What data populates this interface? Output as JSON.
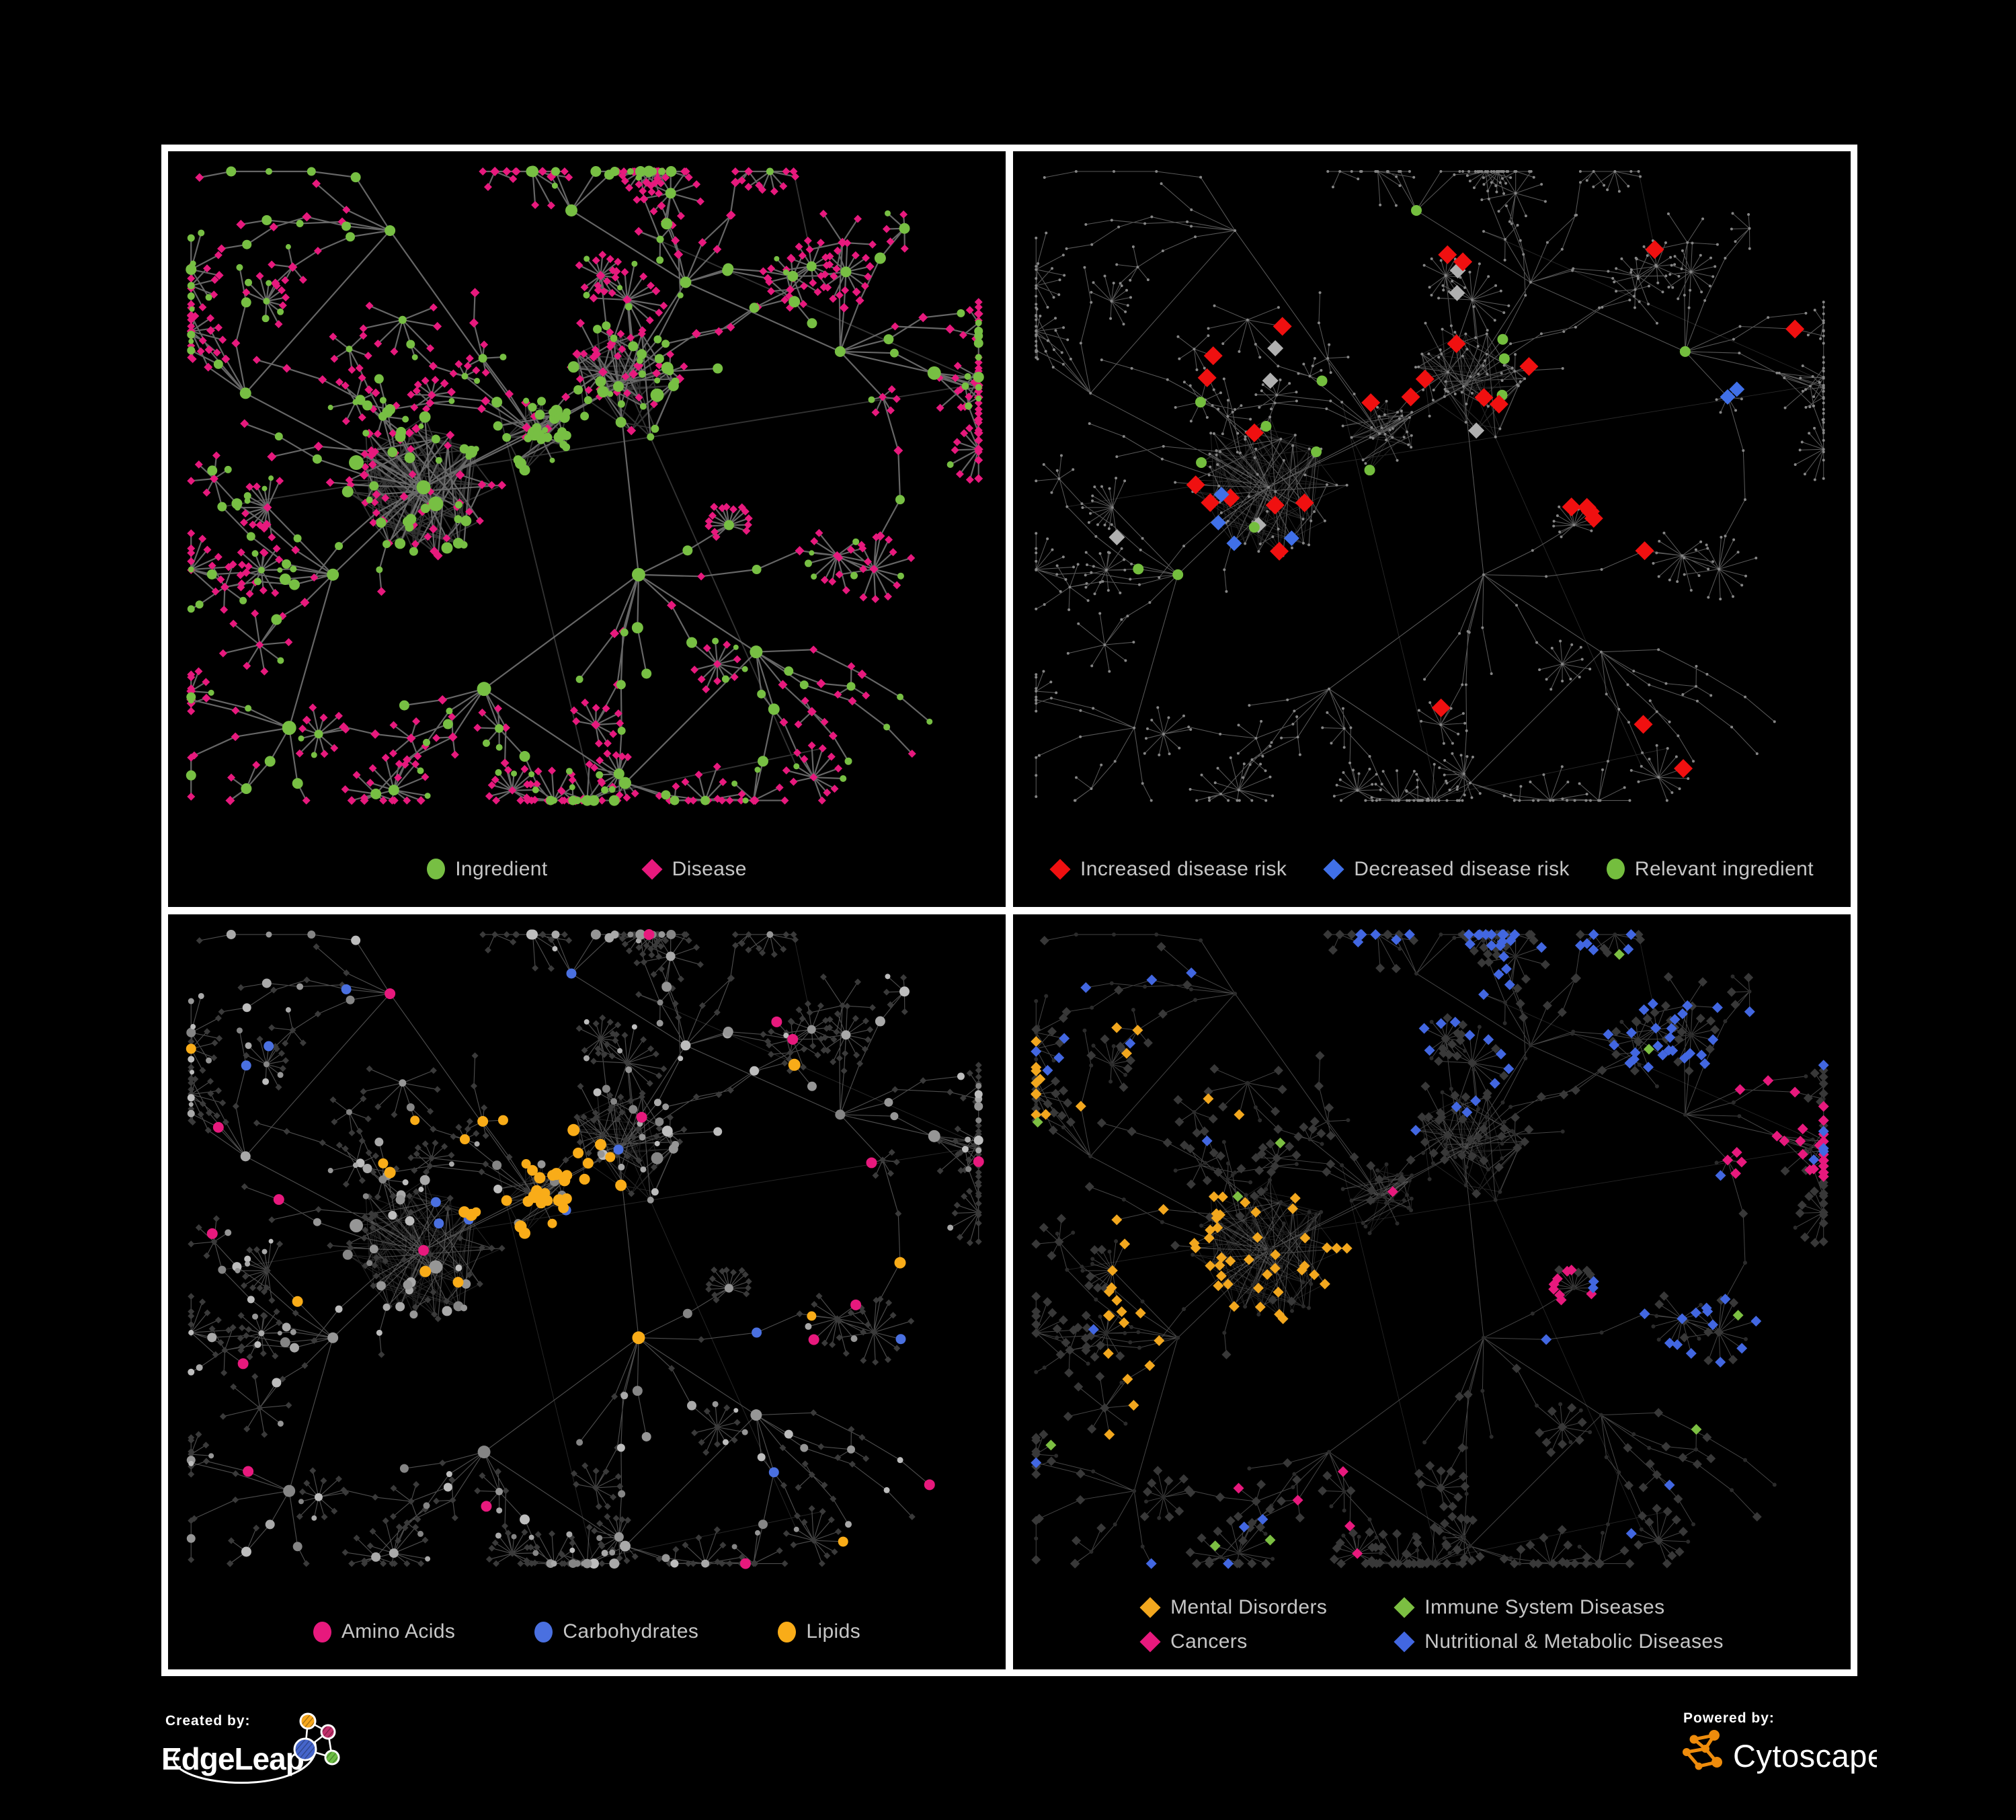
{
  "page": {
    "background": "#000000",
    "frame_color": "#ffffff",
    "panel_background": "#000000",
    "legend_text_color": "#c6c6c6"
  },
  "panels": [
    {
      "id": "ingredient-disease",
      "description": "network-graph of ingredients and diseases",
      "legend": {
        "layout": "row",
        "gap": 140,
        "items": [
          {
            "label": "Ingredient",
            "shape": "circle",
            "color": "#77bf43"
          },
          {
            "label": "Disease",
            "shape": "diamond",
            "color": "#e7197d"
          }
        ]
      },
      "style": {
        "edge": {
          "color": "#6f6f6f",
          "width": 2.2,
          "opacity": 0.92,
          "soft_opacity": 0.45
        },
        "ingredient_color": "#77bf43",
        "disease_color": "#e7197d"
      }
    },
    {
      "id": "disease-risk",
      "description": "network-graph highlighting disease risk associations",
      "legend": {
        "layout": "row",
        "gap": 55,
        "items": [
          {
            "label": "Increased disease risk",
            "shape": "diamond",
            "color": "#f01010"
          },
          {
            "label": "Decreased disease risk",
            "shape": "diamond",
            "color": "#4070e8"
          },
          {
            "label": "Relevant ingredient",
            "shape": "circle",
            "color": "#74be3e"
          }
        ]
      },
      "style": {
        "edge": {
          "color": "#676767",
          "width": 1.05,
          "opacity": 0.85,
          "soft_opacity": 0.4
        },
        "base_color": "#868686",
        "increased_color": "#f01010",
        "decreased_color": "#4070e8",
        "mixed_color": "#b0b0b0",
        "ingredient_color": "#74be3e"
      }
    },
    {
      "id": "ingredient-classes",
      "description": "network-graph highlighting ingredient chemical classes",
      "legend": {
        "layout": "row",
        "gap": 118,
        "items": [
          {
            "label": "Amino Acids",
            "shape": "circle",
            "color": "#e7197d"
          },
          {
            "label": "Carbohydrates",
            "shape": "circle",
            "color": "#4a70e0"
          },
          {
            "label": "Lipids",
            "shape": "circle",
            "color": "#f9ac18"
          }
        ]
      },
      "style": {
        "edge": {
          "color": "#6e6e6e",
          "width": 1.15,
          "opacity": 0.7,
          "soft_opacity": 0.35
        },
        "ingredient_grays": [
          "#858585",
          "#969696",
          "#a9a9a9",
          "#bdbdbd"
        ],
        "disease_color": "#3a3a3a",
        "amino_color": "#e7197d",
        "carb_color": "#4a70e0",
        "lipid_color": "#f9ac18"
      }
    },
    {
      "id": "disease-classes",
      "description": "network-graph highlighting disease categories",
      "legend": {
        "layout": "grid",
        "items": [
          {
            "label": "Mental Disorders",
            "shape": "diamond",
            "color": "#f2a71e"
          },
          {
            "label": "Immune System Diseases",
            "shape": "diamond",
            "color": "#7cbf42"
          },
          {
            "label": "Cancers",
            "shape": "diamond",
            "color": "#e7197d"
          },
          {
            "label": "Nutritional & Metabolic Diseases",
            "shape": "diamond",
            "color": "#4267e1"
          }
        ]
      },
      "style": {
        "edge": {
          "color": "#7e7e7e",
          "width": 1.0,
          "opacity": 0.55,
          "soft_opacity": 0.3
        },
        "ingredient_color": "#2b2b2b",
        "disease_color": "#383838",
        "mental_color": "#f2a71e",
        "immune_color": "#7cbf42",
        "cancer_color": "#e7197d",
        "metabolic_color": "#4267e1"
      }
    }
  ],
  "footer": {
    "created_by_label": "Created by:",
    "created_by_brand": "EdgeLeap",
    "powered_by_label": "Powered by:",
    "powered_by_brand": "Cytoscape",
    "cytoscape_color": "#ee8c0c",
    "edgeleap_colors": {
      "orange": "#f6a71c",
      "magenta": "#bf2f6a",
      "blue": "#4565cb",
      "green": "#6cbe44"
    }
  }
}
